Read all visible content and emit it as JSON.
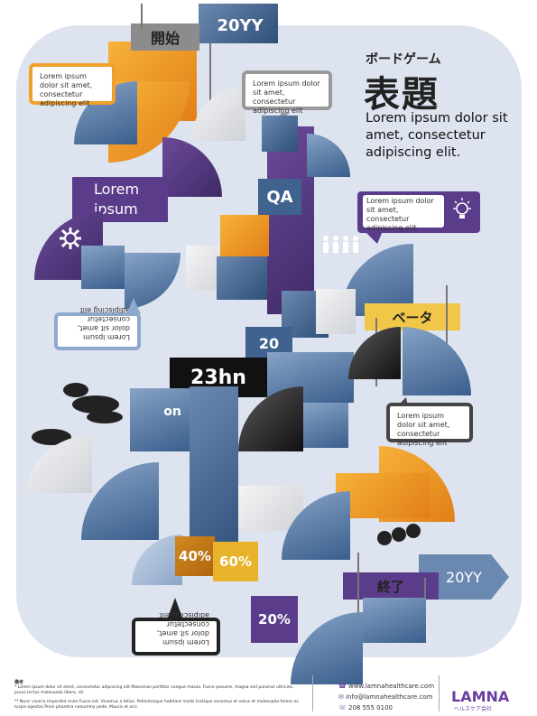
{
  "header": {
    "start_label": "開始",
    "year_top": "20YY",
    "small_title": "ボードゲーム",
    "main_title": "表題",
    "subtitle": "Lorem ipsum dolor sit amet, consectetur adipiscing elit."
  },
  "callouts": {
    "top_left": "Lorem ipsum dolor sit amet, consectetur adipiscing elit",
    "top_center": "Lorem ipsum dolor sit amet, consectetur adipiscing elit",
    "right_purple": "Lorem ipsum dolor sit amet, consectetur adipiscing elit",
    "left_flipped": "Lorem ipsum dolor sit amet, consectetur adipiscing elit",
    "right_middle": "Lorem ipsum dolor sit amet, consectetur adipiscing elit",
    "bottom_flipped": "Lorem ipsum dolor sit amet, consectetur adipiscing elit"
  },
  "tiles": {
    "lorem_ipsum": "Lorem ipsum",
    "qa": "QA",
    "beta": "ベータ",
    "num_20": "20",
    "big_23": "23hn",
    "on": "on",
    "pct_40": "40%",
    "pct_60": "60%",
    "end_label": "終了",
    "year_bottom": "20YY",
    "pct_20": "20%"
  },
  "footer": {
    "notes_title": "備考",
    "note1": "* Lorem ipsum dolor sit amet, consectetur adipiscing elit Maecenas porttitor congue massa. Fusce posuere, magna sed pulvinar ultricies, purus lectus malesuada libero, sit.",
    "note2": "** Nunc viverra imperdiet enim Fusce est. Vivamus a tellus. Pellentesque habitant morbi tristique senectus et netus et malesuada fames ac turpis egestas Proin pharetra nonummy pede. Mauris et orci.",
    "website": "www.lamnahealthcare.com",
    "email": "info@lamnahealthcare.com",
    "phone": "208 555 0100",
    "brand": "LAMNA",
    "brand_sub": "ヘルスケア会社"
  },
  "icons": [
    "gear-icon",
    "lightbulb-icon",
    "people-icon",
    "web-icon",
    "email-icon",
    "phone-icon",
    "cloud-icon"
  ],
  "colors": {
    "purple": "#5a3c8a",
    "orange": "#f0a02a",
    "blue": "#3f628f",
    "brand": "#6b3fa0"
  }
}
